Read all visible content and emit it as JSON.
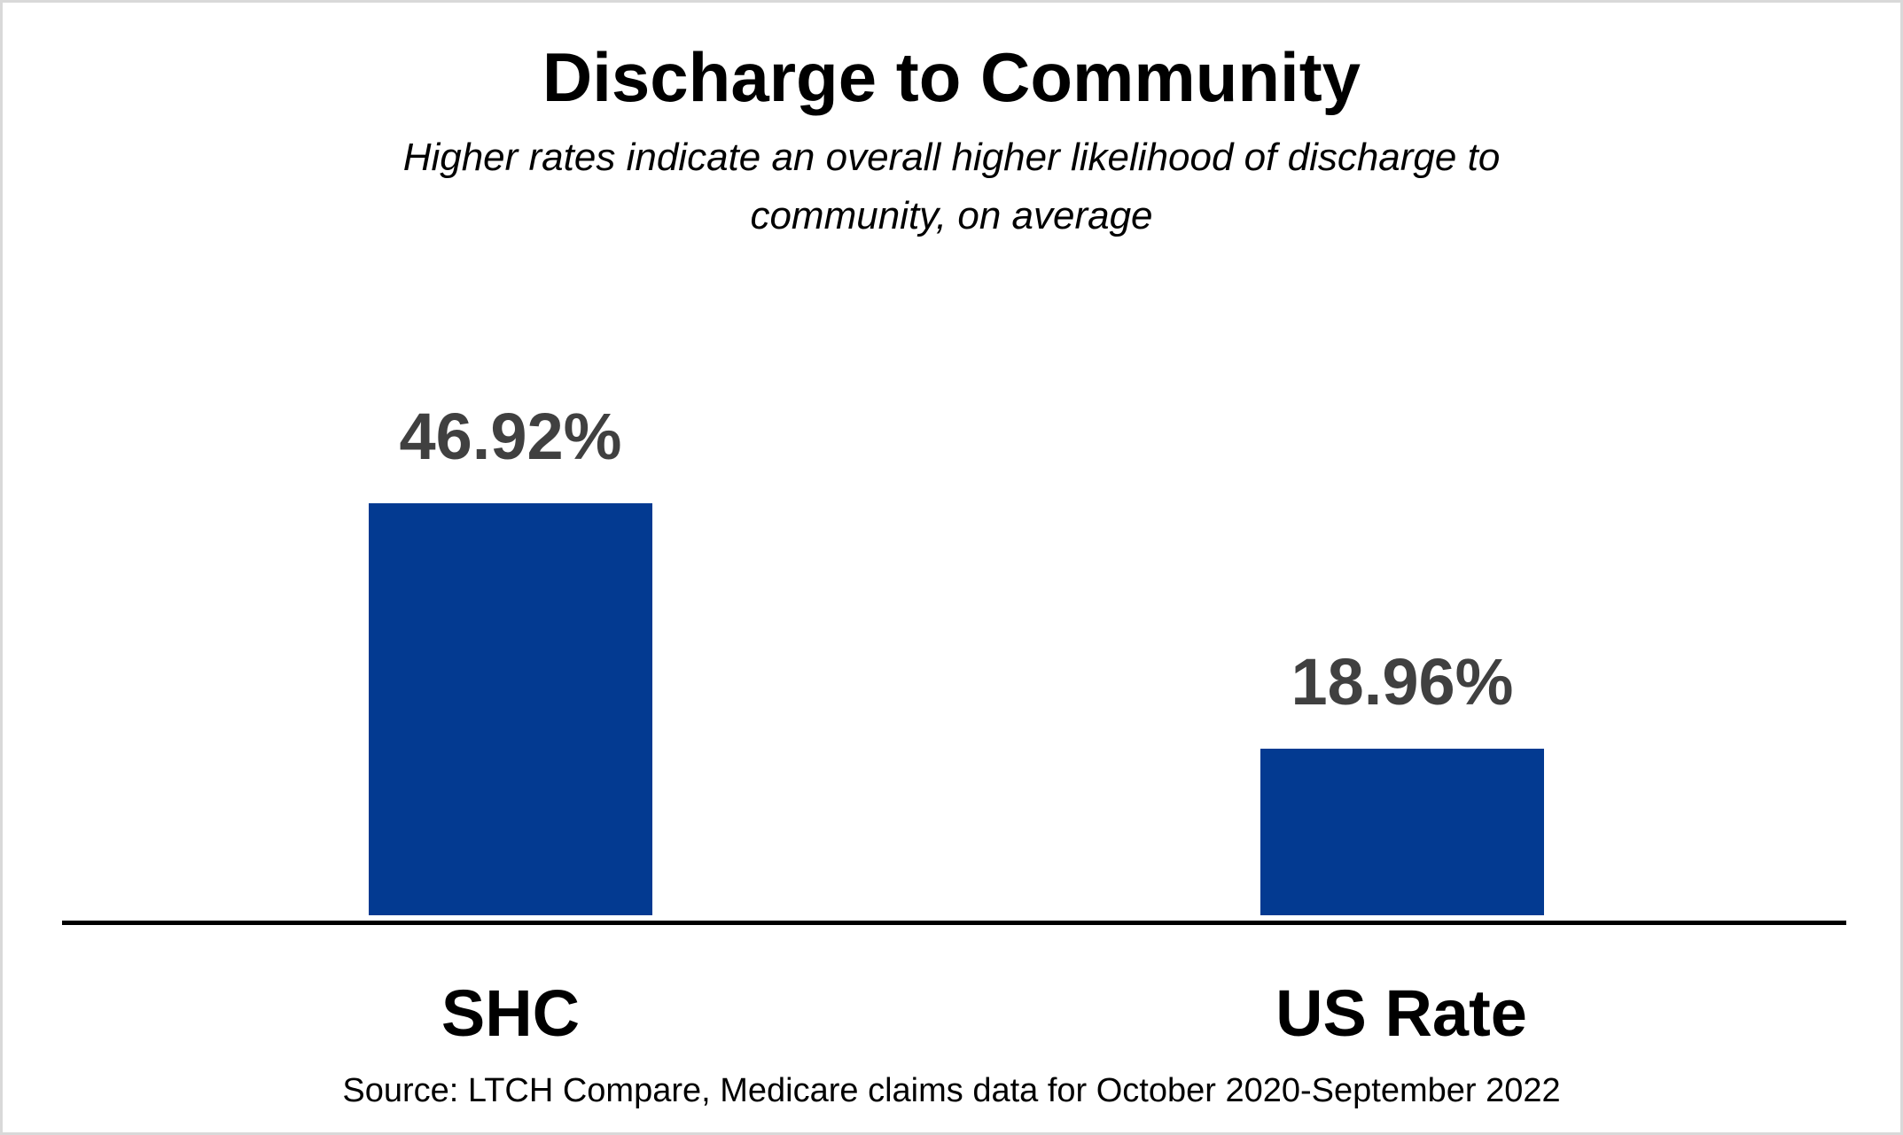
{
  "window": {
    "background": "#ffffff",
    "border_color": "#d9d9d9"
  },
  "header": {
    "title": "Discharge to Community",
    "subtitle_lines": [
      "Higher rates indicate an overall higher likelihood of discharge to",
      "community, on average"
    ]
  },
  "chart_data": {
    "type": "bar",
    "title": "Discharge to Community",
    "subtitle": "Higher rates indicate an overall higher likelihood of discharge to community, on average",
    "categories": [
      "SHC",
      "US Rate"
    ],
    "values": [
      46.92,
      18.96
    ],
    "value_labels": [
      "46.92%",
      "18.96%"
    ],
    "unit": "%",
    "xlabel": "",
    "ylabel": "",
    "ylim": [
      0,
      50
    ],
    "grid": false,
    "legend": "none",
    "bar_color": "#033a91",
    "value_label_color": "#404040",
    "axis_line_color": "#000000"
  },
  "footer": {
    "source": "Source: LTCH Compare, Medicare claims data for October 2020-September 2022"
  }
}
